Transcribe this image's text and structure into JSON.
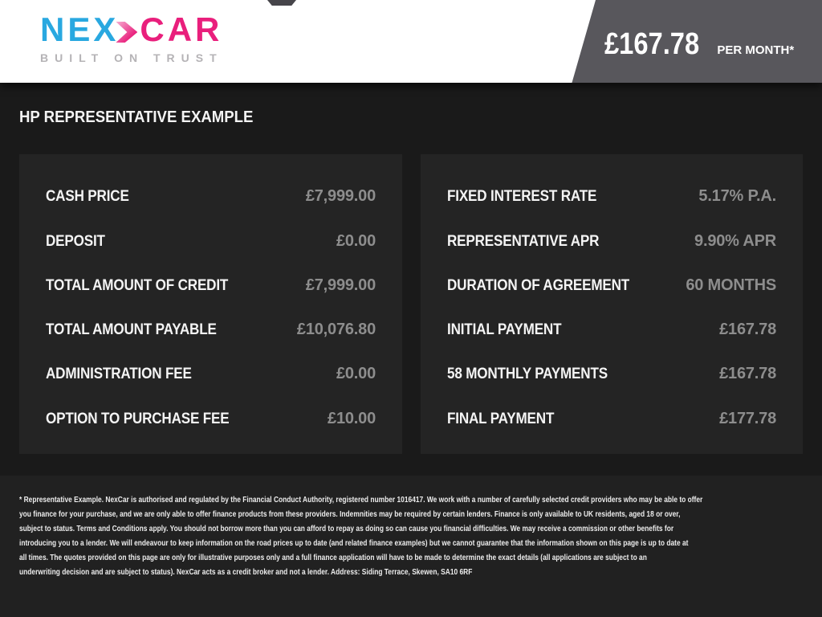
{
  "header": {
    "logo": {
      "part1": "NEX",
      "part2": "CAR",
      "tagline": "BUILT ON TRUST"
    },
    "price_banner": {
      "amount": "£167.78",
      "period": "PER MONTH*"
    }
  },
  "page_title": "HP REPRESENTATIVE EXAMPLE",
  "panels": {
    "left": {
      "rows": [
        {
          "label": "CASH PRICE",
          "value": "£7,999.00"
        },
        {
          "label": "DEPOSIT",
          "value": "£0.00"
        },
        {
          "label": "TOTAL AMOUNT OF CREDIT",
          "value": "£7,999.00"
        },
        {
          "label": "TOTAL AMOUNT PAYABLE",
          "value": "£10,076.80"
        },
        {
          "label": "ADMINISTRATION FEE",
          "value": "£0.00"
        },
        {
          "label": "OPTION TO PURCHASE FEE",
          "value": "£10.00"
        }
      ]
    },
    "right": {
      "rows": [
        {
          "label": "FIXED INTEREST RATE",
          "value": "5.17% P.A."
        },
        {
          "label": "REPRESENTATIVE APR",
          "value": "9.90% APR"
        },
        {
          "label": "DURATION OF AGREEMENT",
          "value": "60 MONTHS"
        },
        {
          "label": "INITIAL PAYMENT",
          "value": "£167.78"
        },
        {
          "label": "58 MONTHLY PAYMENTS",
          "value": "£167.78"
        },
        {
          "label": "FINAL PAYMENT",
          "value": "£177.78"
        }
      ]
    }
  },
  "footer": {
    "disclaimer_lines": [
      "* Representative Example. NexCar is authorised and regulated by the Financial Conduct Authority, registered number 1016417. We work with a number of carefully selected credit providers who may be able to offer",
      "you finance for your purchase, and we are only able to offer finance products from these providers. Indemnities may be required by certain lenders. Finance is only available to UK residents, aged 18 or over,",
      "subject to status. Terms and Conditions apply. You should not borrow more than you can afford to repay as doing so can cause you financial difficulties. We may receive a commission or other benefits for",
      "introducing you to a lender. We will endeavour to keep information on the road prices up to date (and related finance examples) but we cannot guarantee that the information shown on this page is up to date at",
      "all times. The quotes provided on this page are only for illustrative purposes only and a full finance application will have to be made to determine the exact details (all applications are subject to an",
      "underwriting decision and are subject to status). NexCar acts as a credit broker and not a lender. Address: Siding Terrace, Skewen, SA10 6RF"
    ]
  },
  "colors": {
    "logo_blue": "#29a8e0",
    "logo_pink": "#e91f7c",
    "logo_gray": "#b5b3b6",
    "banner_gray": "#58575c",
    "page_background": "#1a1a1a",
    "panel_background": "#242424",
    "footer_background": "#212121",
    "label_text": "#f4f4f4",
    "value_text": "#8d8d8d"
  }
}
